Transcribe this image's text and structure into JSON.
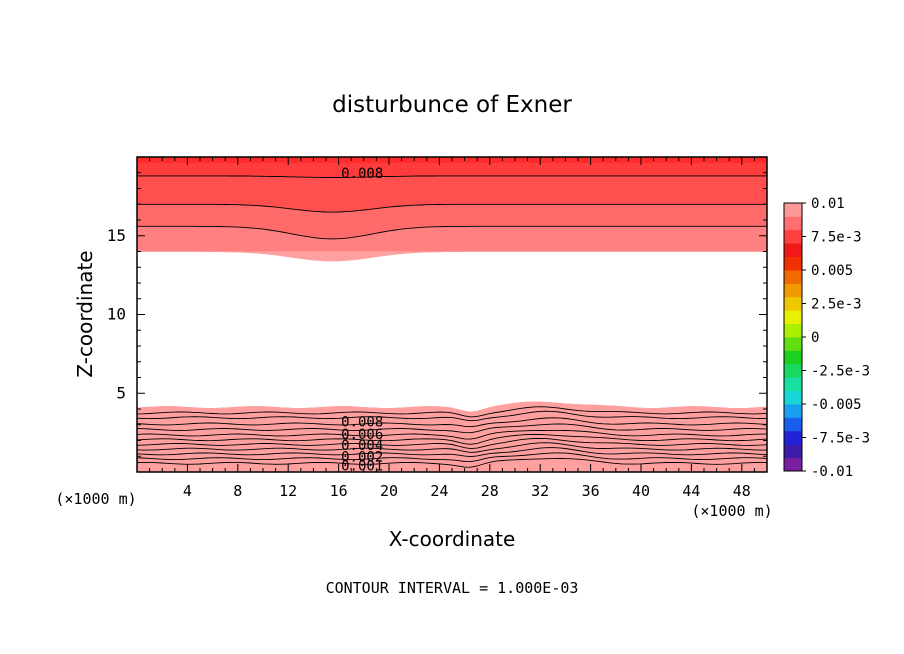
{
  "chart_data": {
    "type": "contour",
    "title": "disturbunce of Exner",
    "xlabel": "X-coordinate",
    "ylabel": "Z-coordinate",
    "x_unit": "(×1000 m)",
    "z_unit": "(×1000 m)",
    "xlim": [
      0,
      50
    ],
    "zlim": [
      0,
      20
    ],
    "x_ticks": [
      4,
      8,
      12,
      16,
      20,
      24,
      28,
      32,
      36,
      40,
      44,
      48
    ],
    "z_ticks": [
      5,
      10,
      15
    ],
    "contour_interval_label": "CONTOUR INTERVAL = 1.000E-03",
    "contour_interval": 0.001,
    "colorbar": {
      "range": [
        -0.01,
        0.01
      ],
      "tick_labels": [
        "0.01",
        "7.5e-3",
        "0.005",
        "2.5e-3",
        "0",
        "-2.5e-3",
        "-0.005",
        "-7.5e-3",
        "-0.01"
      ],
      "colors": [
        "#7b1fa2",
        "#3c1ba8",
        "#1f22d6",
        "#1a5ef0",
        "#1aa0f0",
        "#18d6d6",
        "#17e0a0",
        "#17d860",
        "#1ed01e",
        "#60e010",
        "#a8f000",
        "#e8f000",
        "#f0c800",
        "#f09a00",
        "#f06a00",
        "#f03000",
        "#f01818",
        "#ff4040",
        "#ff6f6f",
        "#ff9898"
      ]
    },
    "contour_labels": [
      {
        "text": "0.008",
        "x": 16.2,
        "z": 19.0
      },
      {
        "text": "0.008",
        "x": 16.2,
        "z": 3.2
      },
      {
        "text": "0.006",
        "x": 16.2,
        "z": 2.4
      },
      {
        "text": "0.004",
        "x": 16.2,
        "z": 1.7
      },
      {
        "text": "0.002",
        "x": 16.2,
        "z": 1.0
      },
      {
        "text": "0.001",
        "x": 16.2,
        "z": 0.4
      }
    ],
    "upper_region": {
      "band_colors": [
        "#ff3c3c",
        "#ff4f4f",
        "#ff6a6a",
        "#ff8080",
        "#ffa0a0"
      ],
      "boundaries_edge": [
        19.6,
        18.8,
        17.0,
        15.6,
        14.0
      ],
      "boundaries_dip": [
        19.6,
        18.7,
        16.5,
        14.8,
        13.4
      ],
      "dip_center_x": 15.5,
      "dip_width_x": 4.5
    },
    "lower_region": {
      "band_colors": [
        "#3ec81e",
        "#5ed81a",
        "#96e016",
        "#c8e80a",
        "#ecd000",
        "#f2a800",
        "#f28200",
        "#f25a00",
        "#f03000",
        "#f01a1a",
        "#ff4a4a",
        "#ff7878",
        "#ffa0a0"
      ],
      "base_boundaries": [
        0.25,
        0.55,
        0.85,
        1.15,
        1.45,
        1.75,
        2.05,
        2.35,
        2.7,
        3.05,
        3.45,
        3.75,
        4.1
      ],
      "bump_center_x": 32.5,
      "bump_width_x": 3.5,
      "bump_amplitude": 0.35,
      "dip_center_x": 26.5,
      "dip_width_x": 1.2,
      "dip_amplitude": -0.25
    }
  }
}
